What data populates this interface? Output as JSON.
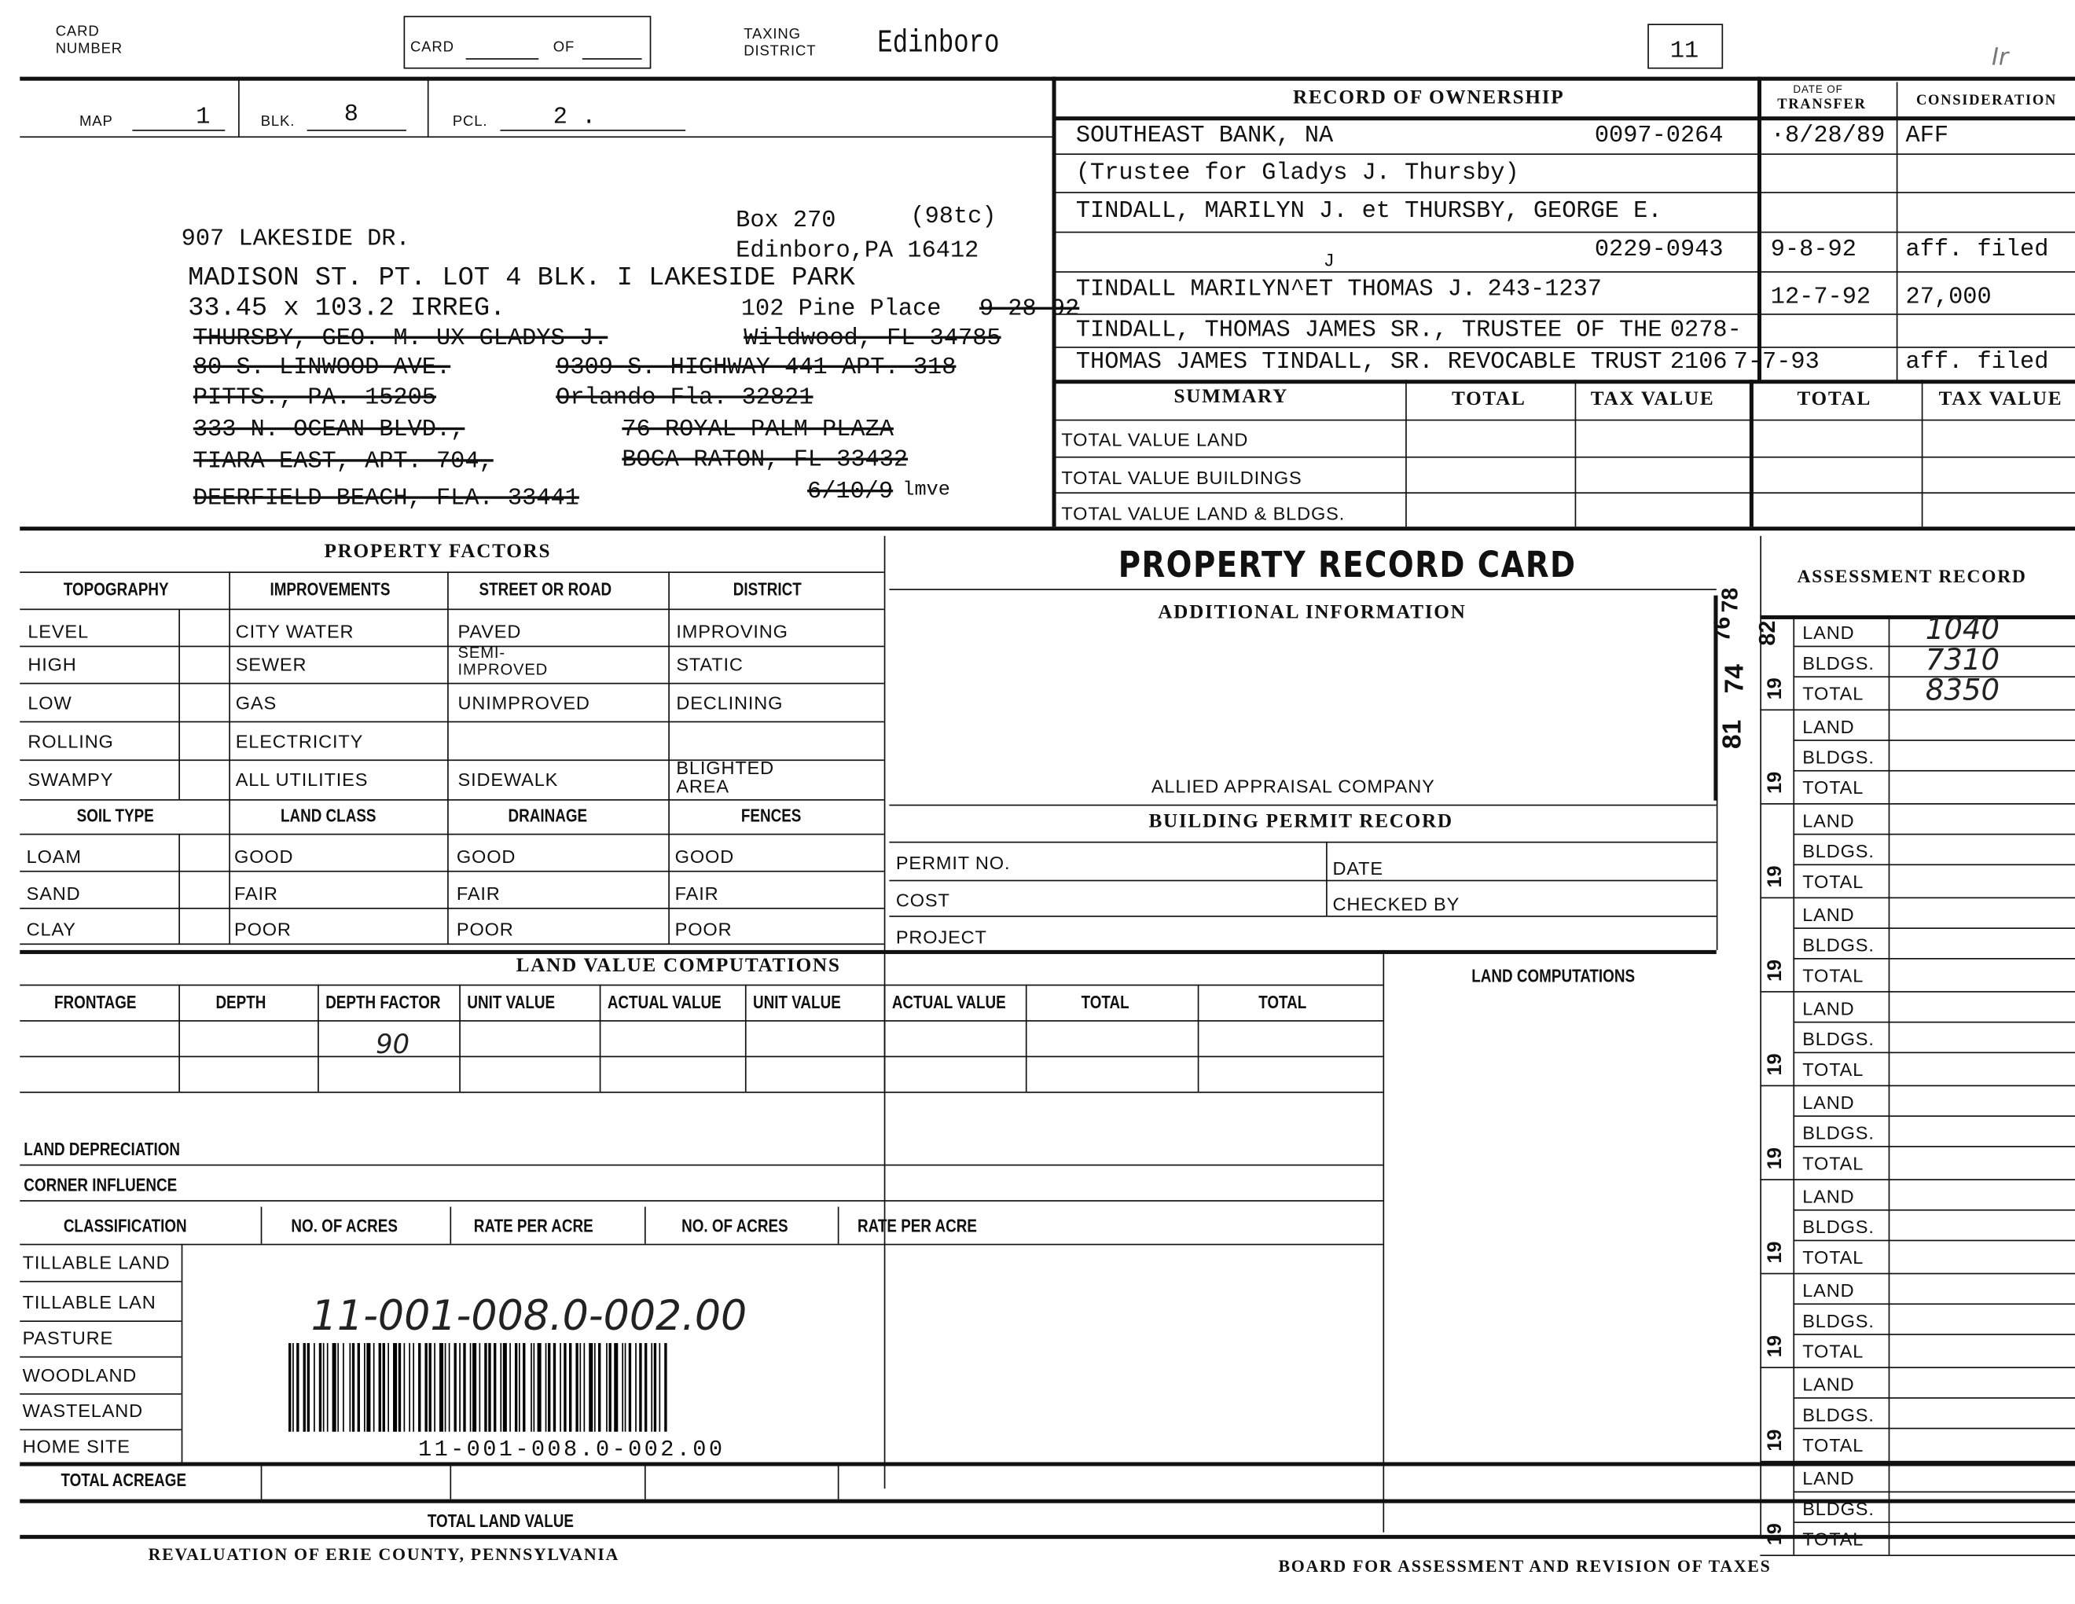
{
  "header": {
    "card_number_label": "CARD NUMBER",
    "card_label": "CARD",
    "of_label": "OF",
    "taxing_district_label": "TAXING DISTRICT",
    "taxing_district_value": "Edinboro",
    "district_number": "11",
    "corner_mark": "Ir"
  },
  "parcel": {
    "map_label": "MAP",
    "map_value": "1",
    "blk_label": "BLK.",
    "blk_value": "8",
    "pcl_label": "PCL.",
    "pcl_value": "2 ."
  },
  "address_block": {
    "property_address": "907 LAKESIDE DR.",
    "mailing_box": "Box 270",
    "mailing_code": "(98tc)",
    "mailing_city": "Edinboro,PA 16412",
    "legal_description": "MADISON ST. PT. LOT 4 BLK. I LAKESIDE PARK",
    "dimensions": "33.45 x 103.2 IRREG.",
    "pine_place": "102 Pine Place",
    "pine_place_date": "9-28-92",
    "struck_lines": [
      "THURSBY, GEO. M. UX GLADYS J.",
      "Wildwood, FL 34785",
      "80 S. LINWOOD AVE.",
      "9309 S. HIGHWAY 441 APT. 318",
      "PITTS., PA. 15205",
      "Orlando Fla.  32821",
      "333 N. OCEAN BLVD.,",
      "TIARA EAST, APT. 704,",
      "DEERFIELD BEACH, FLA.   33441",
      "76 ROYAL PALM PLAZA",
      "BOCA RATON, FL 33432",
      "6/10/9"
    ],
    "mve_note": "lmve"
  },
  "ownership": {
    "title": "RECORD OF OWNERSHIP",
    "date_header_top": "DATE OF",
    "date_header": "TRANSFER",
    "consideration_header": "CONSIDERATION",
    "rows": [
      {
        "name": "SOUTHEAST BANK, NA",
        "book": "0097-0264",
        "date": "·8/28/89",
        "consideration": "AFF"
      },
      {
        "name": "(Trustee for Gladys J. Thursby)",
        "book": "",
        "date": "",
        "consideration": ""
      },
      {
        "name": "TINDALL, MARILYN J. et THURSBY, GEORGE E.",
        "book": "",
        "date": "",
        "consideration": ""
      },
      {
        "name": "",
        "book": "0229-0943",
        "date": "9-8-92",
        "consideration": "aff. filed"
      },
      {
        "name": "TINDALL MARILYN^ET THOMAS J.",
        "book": "243-1237",
        "date": "12-7-92",
        "consideration": "27,000"
      },
      {
        "name": "TINDALL, THOMAS JAMES SR., TRUSTEE OF THE",
        "book": "0278-",
        "date": "",
        "consideration": ""
      },
      {
        "name": "THOMAS JAMES TINDALL, SR. REVOCABLE TRUST",
        "book": "2106",
        "date": "7-7-93",
        "consideration": "aff. filed"
      }
    ],
    "insert_mark": "J"
  },
  "summary": {
    "title": "SUMMARY",
    "col_total": "TOTAL",
    "col_tax_value": "TAX VALUE",
    "rows": [
      "TOTAL VALUE LAND",
      "TOTAL VALUE BUILDINGS",
      "TOTAL VALUE LAND & BLDGS."
    ]
  },
  "property_factors": {
    "title": "PROPERTY FACTORS",
    "headers": [
      "TOPOGRAPHY",
      "IMPROVEMENTS",
      "STREET OR ROAD",
      "DISTRICT"
    ],
    "rows": [
      [
        "LEVEL",
        "CITY WATER",
        "PAVED",
        "IMPROVING"
      ],
      [
        "HIGH",
        "SEWER",
        "SEMI-IMPROVED",
        "STATIC"
      ],
      [
        "LOW",
        "GAS",
        "UNIMPROVED",
        "DECLINING"
      ],
      [
        "ROLLING",
        "ELECTRICITY",
        "",
        ""
      ],
      [
        "SWAMPY",
        "ALL UTILITIES",
        "SIDEWALK",
        "BLIGHTED AREA"
      ]
    ],
    "headers2": [
      "SOIL TYPE",
      "LAND CLASS",
      "DRAINAGE",
      "FENCES"
    ],
    "rows2": [
      [
        "LOAM",
        "GOOD",
        "GOOD",
        "GOOD"
      ],
      [
        "SAND",
        "FAIR",
        "FAIR",
        "FAIR"
      ],
      [
        "CLAY",
        "POOR",
        "POOR",
        "POOR"
      ]
    ]
  },
  "center": {
    "card_title": "PROPERTY RECORD CARD",
    "additional_info": "ADDITIONAL INFORMATION",
    "company": "ALLIED APPRAISAL COMPANY",
    "permit_title": "BUILDING PERMIT RECORD",
    "permit_no": "PERMIT NO.",
    "date": "DATE",
    "cost": "COST",
    "checked_by": "CHECKED BY",
    "project": "PROJECT",
    "land_computations": "LAND COMPUTATIONS"
  },
  "land_value": {
    "title": "LAND VALUE COMPUTATIONS",
    "headers": [
      "FRONTAGE",
      "DEPTH",
      "DEPTH FACTOR",
      "UNIT VALUE",
      "ACTUAL VALUE",
      "UNIT VALUE",
      "ACTUAL VALUE",
      "TOTAL",
      "TOTAL"
    ],
    "depth_factor_value": "90",
    "land_depreciation": "LAND DEPRECIATION",
    "corner_influence": "CORNER INFLUENCE"
  },
  "classification": {
    "headers": [
      "CLASSIFICATION",
      "NO. OF ACRES",
      "RATE PER ACRE",
      "NO. OF ACRES",
      "RATE PER ACRE"
    ],
    "rows": [
      "TILLABLE LAND",
      "TILLABLE LAN",
      "PASTURE",
      "WOODLAND",
      "WASTELAND",
      "HOME SITE"
    ],
    "total_acreage": "TOTAL ACREAGE",
    "total_land_value": "TOTAL LAND VALUE"
  },
  "barcode": {
    "handwritten": "11-001-008.0-002.00",
    "printed": "11-001-008.0-002.00"
  },
  "assessment": {
    "title": "ASSESSMENT RECORD",
    "year_prefix": "19",
    "labels": [
      "LAND",
      "BLDGS.",
      "TOTAL"
    ],
    "first_year": "82",
    "first_values": [
      "1040",
      "7310",
      "8350"
    ],
    "stamp_years": [
      "76",
      "78",
      "81",
      "74"
    ],
    "groups": 10
  },
  "footer": {
    "left": "REVALUATION OF ERIE COUNTY, PENNSYLVANIA",
    "right": "BOARD FOR ASSESSMENT AND REVISION OF TAXES"
  }
}
